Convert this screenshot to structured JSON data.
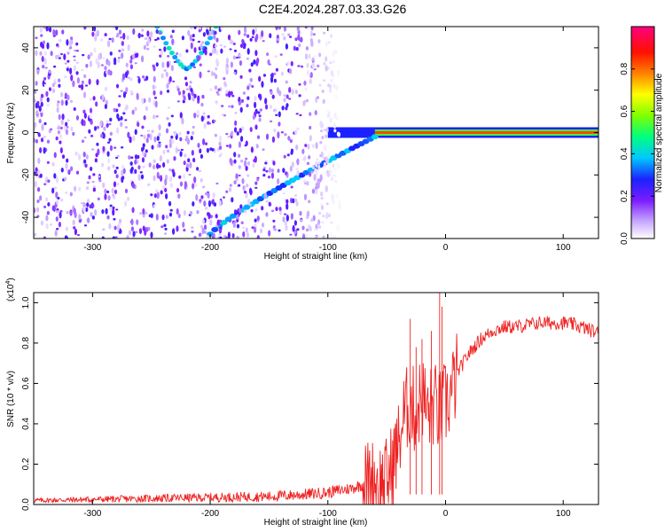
{
  "figure_title": "C2E4.2024.287.03.33.G26",
  "chart_data": [
    {
      "type": "heatmap",
      "name": "spectrogram",
      "xlabel": "Height of straight line (km)",
      "ylabel": "Frequency (Hz)",
      "xlim": [
        -350,
        130
      ],
      "ylim": [
        -50,
        50
      ],
      "xticks": [
        -300,
        -200,
        -100,
        0,
        100
      ],
      "yticks": [
        -40,
        -20,
        0,
        20,
        40
      ],
      "colorbar": {
        "label": "Normalized spectral amplitude",
        "range": [
          0,
          1
        ],
        "ticks": [
          0.0,
          0.2,
          0.4,
          0.6,
          0.8
        ],
        "tick_labels": [
          "0.0",
          "0.2",
          "0.4",
          "0.6",
          "0.8"
        ],
        "colors": [
          "#ffffff",
          "#c8a8ff",
          "#7a1cff",
          "#1b22ff",
          "#00c8ff",
          "#00ff80",
          "#80ff00",
          "#ffff00",
          "#ff8000",
          "#ff1000",
          "#ff0080"
        ]
      },
      "features": [
        {
          "name": "carrier line",
          "x_range": [
            -60,
            130
          ],
          "frequency": 0,
          "amplitude": 0.85
        },
        {
          "name": "converging line",
          "x_range": [
            -200,
            -60
          ],
          "frequency_start": -48,
          "frequency_end": -2,
          "amplitude": 0.35
        },
        {
          "name": "upper curve",
          "x_range": [
            -245,
            -195
          ],
          "frequency_start": 30,
          "frequency_end": 50,
          "amplitude": 0.4
        },
        {
          "name": "background noise",
          "x_range": [
            -350,
            -90
          ],
          "frequency_range": [
            -50,
            50
          ],
          "amplitude": 0.15
        }
      ]
    },
    {
      "type": "line",
      "name": "snr",
      "xlabel": "Height of straight line (km)",
      "ylabel": "SNR (10 * v/v)",
      "y_multiplier": "(x10",
      "y_multiplier_exp": "4",
      "y_multiplier_close": ")",
      "xlim": [
        -350,
        130
      ],
      "ylim": [
        0,
        1.05
      ],
      "xticks": [
        -300,
        -200,
        -100,
        0,
        100
      ],
      "yticks": [
        0.0,
        0.2,
        0.4,
        0.6,
        0.8,
        1.0
      ],
      "ytick_labels": [
        "0.0",
        "0.2",
        "0.4",
        "0.6",
        "0.8",
        "1.0"
      ],
      "color": "#ee2222",
      "series": [
        {
          "name": "SNR",
          "x": [
            -350,
            -300,
            -250,
            -200,
            -150,
            -120,
            -100,
            -80,
            -70,
            -60,
            -55,
            -50,
            -45,
            -40,
            -35,
            -30,
            -25,
            -20,
            -15,
            -10,
            -5,
            0,
            5,
            10,
            20,
            30,
            40,
            50,
            60,
            70,
            80,
            90,
            100,
            110,
            120,
            130
          ],
          "values": [
            0.02,
            0.025,
            0.03,
            0.035,
            0.04,
            0.05,
            0.06,
            0.08,
            0.1,
            0.12,
            0.1,
            0.12,
            0.2,
            0.3,
            0.45,
            0.5,
            0.45,
            0.55,
            0.45,
            0.5,
            0.45,
            0.5,
            0.55,
            0.65,
            0.75,
            0.82,
            0.86,
            0.88,
            0.88,
            0.89,
            0.9,
            0.9,
            0.9,
            0.89,
            0.87,
            0.85
          ]
        }
      ]
    }
  ]
}
